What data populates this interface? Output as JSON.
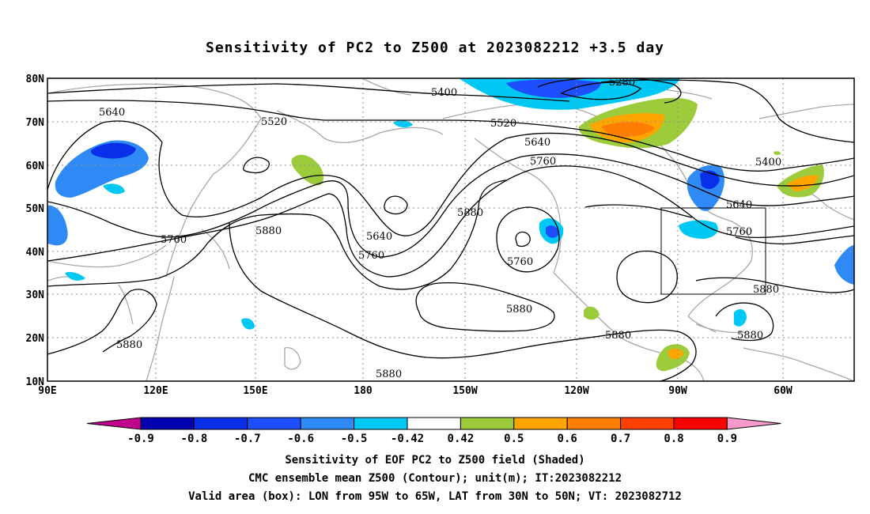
{
  "title": "Sensitivity of PC2 to Z500 at 2023082212 +3.5 day",
  "lat_labels": [
    "80N",
    "70N",
    "60N",
    "50N",
    "40N",
    "30N",
    "20N",
    "10N"
  ],
  "lon_labels": [
    "90E",
    "120E",
    "150E",
    "180",
    "150W",
    "120W",
    "90W",
    "60W"
  ],
  "contour_labels": [
    "5280",
    "5400",
    "5400",
    "5520",
    "5520",
    "5640",
    "5640",
    "5640",
    "5640",
    "5760",
    "5760",
    "5760",
    "5760",
    "5760",
    "5880",
    "5880",
    "5880",
    "5880",
    "5880",
    "5880",
    "5880",
    "5880"
  ],
  "colorbar": {
    "labels": [
      "-0.9",
      "-0.8",
      "-0.7",
      "-0.6",
      "-0.5",
      "-0.42",
      "0.42",
      "0.5",
      "0.6",
      "0.7",
      "0.8",
      "0.9"
    ],
    "colors": [
      "#0000b0",
      "#0a2fe8",
      "#1e4fff",
      "#2f8af5",
      "#00c8f5",
      "#ffffff",
      "#9ccc3c",
      "#ffa500",
      "#ff7d00",
      "#ff4000",
      "#ff0000"
    ],
    "low_end_color": "#c0008a",
    "high_end_color": "#f59acb"
  },
  "captions": {
    "line1": "Sensitivity of EOF PC2 to Z500 field (Shaded)",
    "line2": "CMC ensemble mean Z500 (Contour); unit(m); IT:2023082212",
    "line3": "Valid area (box): LON from 95W to 65W, LAT from 30N to 50N; VT: 2023082712"
  },
  "valid_box": {
    "lon_min": -95,
    "lon_max": -65,
    "lat_min": 30,
    "lat_max": 50
  }
}
